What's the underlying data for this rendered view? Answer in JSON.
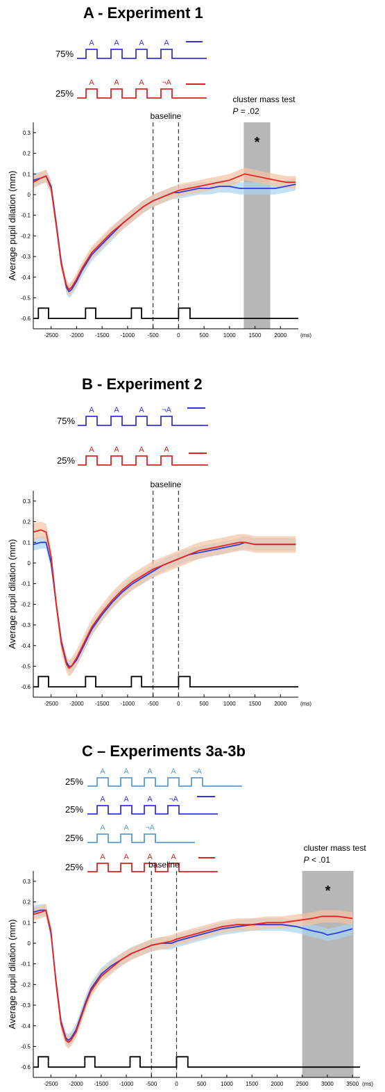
{
  "panels": [
    {
      "title": "A - Experiment 1",
      "ylabel": "Average pupil dilation (mm)",
      "x_unit": "(ms)",
      "baseline_label": "baseline",
      "significance": {
        "label": "cluster mass test",
        "p_prefix": "P",
        "p_value": "= .02",
        "star": "*"
      },
      "conditions": [
        {
          "percent": "75%",
          "color": "#3333dd",
          "tones": [
            "A",
            "A",
            "A",
            "A"
          ]
        },
        {
          "percent": "25%",
          "color": "#dd2222",
          "tones": [
            "A",
            "A",
            "A",
            "¬A"
          ]
        }
      ]
    },
    {
      "title": "B - Experiment 2",
      "ylabel": "Average pupil dilation (mm)",
      "x_unit": "(ms)",
      "baseline_label": "baseline",
      "conditions": [
        {
          "percent": "75%",
          "color": "#3333dd",
          "tones": [
            "A",
            "A",
            "A",
            "¬A"
          ]
        },
        {
          "percent": "25%",
          "color": "#dd2222",
          "tones": [
            "A",
            "A",
            "A",
            "A"
          ]
        }
      ]
    },
    {
      "title": "C – Experiments 3a-3b",
      "ylabel": "Average pupil dilation (mm)",
      "x_unit": "(ms)",
      "baseline_label": "baseline",
      "significance": {
        "label": "cluster mass test",
        "p_prefix": "P",
        "p_value": "< .01",
        "star": "*"
      },
      "conditions": [
        {
          "percent": "25%",
          "color": "#5b9bd5",
          "tones": [
            "A",
            "A",
            "A",
            "A",
            "¬A"
          ]
        },
        {
          "percent": "25%",
          "color": "#3333dd",
          "tones": [
            "A",
            "A",
            "A",
            "¬A"
          ]
        },
        {
          "percent": "25%",
          "color": "#5b9bd5",
          "tones": [
            "A",
            "A",
            "¬A"
          ]
        },
        {
          "percent": "25%",
          "color": "#dd2222",
          "tones": [
            "A",
            "A",
            "A",
            "A"
          ]
        }
      ]
    }
  ],
  "chart_data": [
    {
      "type": "line",
      "title": "A - Experiment 1",
      "xlabel": "(ms)",
      "ylabel": "Average pupil dilation (mm)",
      "xlim": [
        -2850,
        2350
      ],
      "ylim": [
        -0.65,
        0.35
      ],
      "xticks": [
        -2500,
        -2000,
        -1500,
        -1000,
        -500,
        0,
        500,
        1000,
        1500,
        2000
      ],
      "yticks": [
        0.3,
        0.2,
        0.1,
        0,
        -0.1,
        -0.2,
        -0.3,
        -0.4,
        -0.5,
        -0.6
      ],
      "xtick_labels": [
        "-2500",
        "-2000",
        "-1500",
        "-1000",
        "-500",
        "0",
        "500",
        "1000",
        "1500",
        "2000"
      ],
      "ytick_labels": [
        "0.3",
        "0.2",
        "0.1",
        "0",
        "-0.1",
        "-0.2",
        "-0.3",
        "-0.4",
        "-0.5",
        "-0.6"
      ],
      "baseline_lines": [
        -500,
        0
      ],
      "significant_window": [
        1280,
        1800
      ],
      "significance_y": 0.28,
      "stimulus_trace": {
        "low": -0.6,
        "high": -0.55,
        "pulses": [
          [
            -2750,
            -2550
          ],
          [
            -1825,
            -1625
          ],
          [
            -925,
            -725
          ],
          [
            0,
            225
          ]
        ]
      },
      "series": [
        {
          "color": "#2a3de0",
          "band": "#a8d4f0",
          "x": [
            -2850,
            -2700,
            -2600,
            -2500,
            -2400,
            -2300,
            -2200,
            -2150,
            -2100,
            -2000,
            -1900,
            -1800,
            -1700,
            -1500,
            -1300,
            -1100,
            -900,
            -700,
            -500,
            -300,
            -100,
            0,
            200,
            400,
            600,
            800,
            1000,
            1200,
            1300,
            1500,
            1700,
            1900,
            2100,
            2300
          ],
          "y": [
            0.07,
            0.08,
            0.09,
            0.04,
            -0.14,
            -0.33,
            -0.45,
            -0.47,
            -0.46,
            -0.42,
            -0.37,
            -0.33,
            -0.29,
            -0.24,
            -0.19,
            -0.14,
            -0.1,
            -0.06,
            -0.03,
            -0.01,
            0.01,
            0.01,
            0.02,
            0.03,
            0.03,
            0.04,
            0.04,
            0.03,
            0.03,
            0.03,
            0.03,
            0.03,
            0.04,
            0.05
          ],
          "band_width": 0.03
        },
        {
          "color": "#e8231c",
          "band": "#f5c3a3",
          "x": [
            -2850,
            -2700,
            -2600,
            -2500,
            -2400,
            -2300,
            -2200,
            -2150,
            -2100,
            -2000,
            -1900,
            -1800,
            -1700,
            -1500,
            -1300,
            -1100,
            -900,
            -700,
            -500,
            -300,
            -100,
            0,
            200,
            400,
            600,
            800,
            1000,
            1200,
            1300,
            1500,
            1700,
            1900,
            2100,
            2300
          ],
          "y": [
            0.06,
            0.08,
            0.09,
            0.03,
            -0.15,
            -0.34,
            -0.44,
            -0.46,
            -0.45,
            -0.41,
            -0.36,
            -0.32,
            -0.28,
            -0.23,
            -0.18,
            -0.14,
            -0.1,
            -0.06,
            -0.03,
            -0.01,
            0.01,
            0.02,
            0.03,
            0.04,
            0.05,
            0.06,
            0.07,
            0.09,
            0.1,
            0.09,
            0.08,
            0.07,
            0.06,
            0.06
          ],
          "band_width": 0.03
        }
      ]
    },
    {
      "type": "line",
      "title": "B - Experiment 2",
      "xlabel": "(ms)",
      "ylabel": "Average pupil dilation (mm)",
      "xlim": [
        -2850,
        2350
      ],
      "ylim": [
        -0.65,
        0.35
      ],
      "xticks": [
        -2500,
        -2000,
        -1500,
        -1000,
        -500,
        0,
        500,
        1000,
        1500,
        2000
      ],
      "yticks": [
        0.3,
        0.2,
        0.1,
        0,
        -0.1,
        -0.2,
        -0.3,
        -0.4,
        -0.5,
        -0.6
      ],
      "xtick_labels": [
        "-2500",
        "-2000",
        "-1500",
        "-1000",
        "-500",
        "0",
        "500",
        "1000",
        "1500",
        "2000"
      ],
      "ytick_labels": [
        "0.3",
        "0.2",
        "0.1",
        "0",
        "-0.1",
        "-0.2",
        "-0.3",
        "-0.4",
        "-0.5",
        "-0.6"
      ],
      "baseline_lines": [
        -500,
        0
      ],
      "stimulus_trace": {
        "low": -0.6,
        "high": -0.55,
        "pulses": [
          [
            -2750,
            -2550
          ],
          [
            -1825,
            -1625
          ],
          [
            -925,
            -725
          ],
          [
            0,
            225
          ]
        ]
      },
      "series": [
        {
          "color": "#2a3de0",
          "band": "#a8d4f0",
          "x": [
            -2850,
            -2700,
            -2600,
            -2500,
            -2400,
            -2300,
            -2200,
            -2150,
            -2100,
            -2000,
            -1900,
            -1800,
            -1700,
            -1500,
            -1300,
            -1100,
            -900,
            -700,
            -500,
            -300,
            -100,
            0,
            200,
            400,
            600,
            800,
            1000,
            1200,
            1300,
            1500,
            1700,
            1900,
            2100,
            2300
          ],
          "y": [
            0.09,
            0.1,
            0.1,
            0.0,
            -0.2,
            -0.38,
            -0.48,
            -0.5,
            -0.5,
            -0.47,
            -0.42,
            -0.37,
            -0.32,
            -0.25,
            -0.19,
            -0.14,
            -0.1,
            -0.07,
            -0.04,
            -0.01,
            0.01,
            0.02,
            0.04,
            0.05,
            0.06,
            0.07,
            0.08,
            0.09,
            0.1,
            0.09,
            0.09,
            0.09,
            0.09,
            0.09
          ],
          "band_width": 0.03
        },
        {
          "color": "#e8231c",
          "band": "#f5c3a3",
          "x": [
            -2850,
            -2700,
            -2600,
            -2500,
            -2400,
            -2300,
            -2200,
            -2150,
            -2100,
            -2000,
            -1900,
            -1800,
            -1700,
            -1500,
            -1300,
            -1100,
            -900,
            -700,
            -500,
            -300,
            -100,
            0,
            200,
            400,
            600,
            800,
            1000,
            1200,
            1300,
            1500,
            1700,
            1900,
            2100,
            2300
          ],
          "y": [
            0.15,
            0.16,
            0.15,
            0.03,
            -0.2,
            -0.39,
            -0.49,
            -0.51,
            -0.5,
            -0.46,
            -0.41,
            -0.36,
            -0.31,
            -0.24,
            -0.18,
            -0.13,
            -0.09,
            -0.06,
            -0.03,
            -0.01,
            0.01,
            0.02,
            0.04,
            0.06,
            0.07,
            0.08,
            0.09,
            0.1,
            0.1,
            0.09,
            0.09,
            0.09,
            0.09,
            0.09
          ],
          "band_width": 0.04
        }
      ]
    },
    {
      "type": "line",
      "title": "C – Experiments 3a-3b",
      "xlabel": "(ms)",
      "ylabel": "Average pupil dilation (mm)",
      "xlim": [
        -2850,
        3650
      ],
      "ylim": [
        -0.65,
        0.35
      ],
      "xticks": [
        -2500,
        -2000,
        -1500,
        -1000,
        -500,
        0,
        500,
        1000,
        1500,
        2000,
        2500,
        3000,
        3500
      ],
      "yticks": [
        0.3,
        0.2,
        0.1,
        0,
        -0.1,
        -0.2,
        -0.3,
        -0.4,
        -0.5,
        -0.6
      ],
      "xtick_labels": [
        "-2500",
        "-2000",
        "-1500",
        "-1000",
        "-500",
        "0",
        "500",
        "1000",
        "1500",
        "2000",
        "2500",
        "3000",
        "3500"
      ],
      "ytick_labels": [
        "0.3",
        "0.2",
        "0.1",
        "0",
        "-0.1",
        "-0.2",
        "-0.3",
        "-0.4",
        "-0.5",
        "-0.6"
      ],
      "baseline_lines": [
        -500,
        0
      ],
      "significant_window": [
        2500,
        3520
      ],
      "significance_y": 0.28,
      "stimulus_trace": {
        "low": -0.6,
        "high": -0.55,
        "pulses": [
          [
            -2750,
            -2550
          ],
          [
            -1825,
            -1625
          ],
          [
            -925,
            -725
          ],
          [
            0,
            225
          ]
        ]
      },
      "series": [
        {
          "color": "#2a3de0",
          "band": "#a8d4f0",
          "x": [
            -2850,
            -2700,
            -2600,
            -2500,
            -2400,
            -2300,
            -2200,
            -2150,
            -2100,
            -2000,
            -1900,
            -1800,
            -1700,
            -1500,
            -1300,
            -1100,
            -900,
            -700,
            -500,
            -300,
            -100,
            0,
            300,
            600,
            900,
            1200,
            1500,
            1800,
            2100,
            2400,
            2700,
            2900,
            3000,
            3200,
            3500
          ],
          "y": [
            0.15,
            0.16,
            0.16,
            0.05,
            -0.18,
            -0.38,
            -0.46,
            -0.47,
            -0.46,
            -0.42,
            -0.35,
            -0.28,
            -0.22,
            -0.15,
            -0.11,
            -0.08,
            -0.05,
            -0.03,
            -0.01,
            0.0,
            0.0,
            0.01,
            0.03,
            0.05,
            0.07,
            0.08,
            0.09,
            0.09,
            0.09,
            0.08,
            0.06,
            0.05,
            0.04,
            0.05,
            0.07
          ],
          "band_width": 0.03
        },
        {
          "color": "#e8231c",
          "band": "#f5c3a3",
          "x": [
            -2850,
            -2700,
            -2600,
            -2500,
            -2400,
            -2300,
            -2200,
            -2150,
            -2100,
            -2000,
            -1900,
            -1800,
            -1700,
            -1500,
            -1300,
            -1100,
            -900,
            -700,
            -500,
            -300,
            -100,
            0,
            300,
            600,
            900,
            1200,
            1500,
            1800,
            2100,
            2400,
            2700,
            2900,
            3000,
            3200,
            3500
          ],
          "y": [
            0.14,
            0.15,
            0.16,
            0.06,
            -0.19,
            -0.39,
            -0.47,
            -0.48,
            -0.47,
            -0.43,
            -0.36,
            -0.29,
            -0.23,
            -0.16,
            -0.12,
            -0.08,
            -0.05,
            -0.03,
            -0.01,
            0.0,
            0.01,
            0.02,
            0.04,
            0.06,
            0.08,
            0.09,
            0.09,
            0.1,
            0.1,
            0.11,
            0.12,
            0.13,
            0.13,
            0.13,
            0.12
          ],
          "band_width": 0.03
        }
      ]
    }
  ]
}
